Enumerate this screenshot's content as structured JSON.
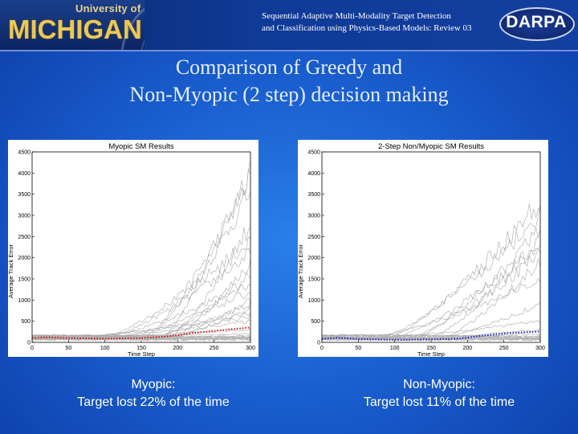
{
  "header": {
    "logo_top": "University of",
    "logo_main": "MICHIGAN",
    "subtitle_line1": "Sequential Adaptive Multi-Modality Target Detection",
    "subtitle_line2": "and Classification using Physics-Based Models: Review 03",
    "darpa_logo": "DARPA"
  },
  "title": {
    "line1": "Comparison of Greedy and",
    "line2": "Non-Myopic (2 step) decision making"
  },
  "colors": {
    "background": "#1a5fd0",
    "myopic_mean": "#d01010",
    "nonmyopic_mean": "#1020c0",
    "trials": "#a8a8a8"
  },
  "chart_data": [
    {
      "type": "line",
      "title": "Myopic SM Results",
      "xlabel": "Time Step",
      "ylabel": "Average Track Error",
      "xlim": [
        0,
        300
      ],
      "ylim": [
        0,
        4500
      ],
      "xticks": [
        "0",
        "50",
        "100",
        "150",
        "200",
        "250",
        "300"
      ],
      "yticks": [
        "0",
        "500",
        "1000",
        "1500",
        "2000",
        "2500",
        "3000",
        "3500",
        "4000",
        "4500"
      ],
      "grid": false,
      "series": [
        {
          "style": "dotted mean",
          "color": "#d01010",
          "x": [
            0,
            20,
            50,
            100,
            150,
            180,
            200,
            220,
            250,
            280,
            300
          ],
          "y": [
            100,
            120,
            100,
            90,
            100,
            130,
            170,
            220,
            270,
            320,
            350
          ]
        }
      ],
      "trial_curves_endpoints": [
        4200,
        3900,
        3600,
        2800,
        2400,
        2100,
        1900,
        1600,
        1400,
        1200,
        1000,
        900,
        800,
        700,
        600,
        500,
        300,
        200,
        150,
        120
      ]
    },
    {
      "type": "line",
      "title": "2-Step Non/Myopic SM Results",
      "xlabel": "Time Step",
      "ylabel": "Average Track Error",
      "xlim": [
        0,
        300
      ],
      "ylim": [
        0,
        4500
      ],
      "xticks": [
        "0",
        "50",
        "100",
        "150",
        "200",
        "250",
        "300"
      ],
      "yticks": [
        "0",
        "500",
        "1000",
        "1500",
        "2000",
        "2500",
        "3000",
        "3500",
        "4000",
        "4500"
      ],
      "grid": false,
      "series": [
        {
          "style": "dotted mean",
          "color": "#1020c0",
          "x": [
            0,
            20,
            50,
            100,
            150,
            180,
            200,
            220,
            250,
            280,
            300
          ],
          "y": [
            80,
            110,
            80,
            60,
            70,
            80,
            110,
            160,
            210,
            240,
            260
          ]
        }
      ],
      "trial_curves_endpoints": [
        3300,
        3000,
        2700,
        2500,
        2300,
        2100,
        1900,
        1500,
        900,
        500,
        300,
        200,
        150,
        100
      ]
    }
  ],
  "captions": {
    "left_line1": "Myopic:",
    "left_line2": "Target lost 22% of the time",
    "right_line1": "Non-Myopic:",
    "right_line2": "Target lost 11% of the time"
  }
}
